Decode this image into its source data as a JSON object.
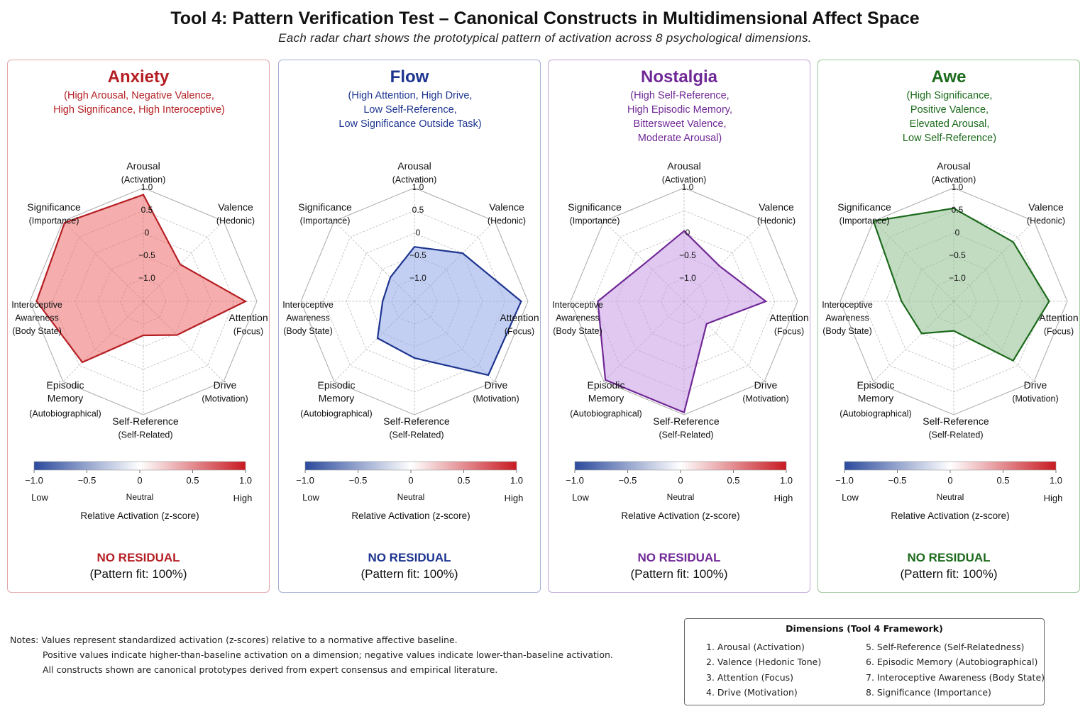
{
  "title": "Tool 4: Pattern Verification Test – Canonical Constructs in Multidimensional Affect Space",
  "subtitle": "Each radar chart shows the prototypical pattern of activation across 8 psychological dimensions.",
  "axes": [
    {
      "name": "Arousal",
      "sub": "(Activation)"
    },
    {
      "name": "Valence",
      "sub": "(Hedonic)"
    },
    {
      "name": "Attention",
      "sub": "(Focus)"
    },
    {
      "name": "Drive",
      "sub": "(Motivation)"
    },
    {
      "name": "Self-Reference",
      "sub": "(Self-Related)"
    },
    {
      "name": "Episodic Memory",
      "sub": "(Autobiographical)"
    },
    {
      "name": "Interoceptive Awareness",
      "sub": "(Body State)"
    },
    {
      "name": "Significance",
      "sub": "(Importance)"
    }
  ],
  "colorbar": {
    "ticks": [
      "−1.0",
      "−0.5",
      "0",
      "0.5",
      "1.0"
    ],
    "low": "Low",
    "neutral": "Neutral",
    "high": "High",
    "label": "Relative Activation (z-score)",
    "colors": [
      "#2b4a9c",
      "#ffffff",
      "#c81a22"
    ]
  },
  "chart_data": [
    {
      "type": "radar",
      "title": "Anxiety",
      "description": [
        "(High Arousal, Negative Valence,",
        "High Significance, High Interoceptive)"
      ],
      "color": "#b51f24",
      "fill": "#ef6a6a",
      "border": "#e3a6a8",
      "rlim": [
        -1.5,
        1.0
      ],
      "rings": [
        "1.0",
        "0.5",
        "0",
        "−0.5",
        "−1.0"
      ],
      "values": [
        0.85,
        -0.35,
        0.75,
        -0.45,
        -0.75,
        0.4,
        0.85,
        0.95
      ],
      "residual": "NO RESIDUAL",
      "fit": "(Pattern fit: 100%)"
    },
    {
      "type": "radar",
      "title": "Flow",
      "description": [
        "(High Attention, High Drive,",
        "Low Self-Reference,",
        "Low Significance Outside Task)"
      ],
      "color": "#1e3590",
      "fill": "#8fa6e8",
      "border": "#a6acd0",
      "rlim": [
        -1.5,
        1.0
      ],
      "rings": [
        "1.0",
        "0.5",
        "0",
        "−0.5",
        "−1.0"
      ],
      "values": [
        -0.3,
        0.0,
        0.85,
        0.8,
        -0.25,
        -0.35,
        -0.8,
        -0.75
      ],
      "residual": "NO RESIDUAL",
      "fit": "(Pattern fit: 100%)"
    },
    {
      "type": "radar",
      "title": "Nostalgia",
      "description": [
        "(High Self-Reference,",
        "High Episodic Memory,",
        "Bittersweet Valence,",
        "Moderate Arousal)"
      ],
      "color": "#702896",
      "fill": "#c79ae6",
      "border": "#c3a6d6",
      "rlim": [
        -1.5,
        1.0
      ],
      "rings": [
        "1.0",
        "0",
        "−0.5",
        "−1.0"
      ],
      "values": [
        0.05,
        -0.4,
        0.3,
        -0.8,
        0.95,
        0.95,
        0.4,
        -0.3
      ],
      "residual": "NO RESIDUAL",
      "fit": "(Pattern fit: 100%)"
    },
    {
      "type": "radar",
      "title": "Awe",
      "description": [
        "(High Significance,",
        "Positive Valence,",
        "Elevated Arousal,",
        "Low Self-Reference)"
      ],
      "color": "#1c6a1c",
      "fill": "#8fc08f",
      "border": "#9cc69c",
      "rlim": [
        -1.5,
        1.0
      ],
      "rings": [
        "1.0",
        "0.5",
        "0",
        "−0.5",
        "−1.0"
      ],
      "values": [
        0.55,
        0.35,
        0.6,
        0.35,
        -0.85,
        -0.5,
        -0.35,
        1.0
      ],
      "residual": "NO RESIDUAL",
      "fit": "(Pattern fit: 100%)"
    }
  ],
  "notes": [
    "Notes: Values represent standardized activation (z-scores) relative to a normative affective baseline.",
    "Positive values indicate higher-than-baseline activation on a dimension; negative values indicate lower-than-baseline activation.",
    "All constructs shown are canonical prototypes derived from expert consensus and empirical literature."
  ],
  "dimensions_box": {
    "title": "Dimensions (Tool 4 Framework)",
    "items": [
      "1. Arousal (Activation)",
      "2. Valence (Hedonic Tone)",
      "3. Attention (Focus)",
      "4. Drive (Motivation)",
      "5. Self-Reference (Self-Relatedness)",
      "6. Episodic Memory (Autobiographical)",
      "7. Interoceptive Awareness (Body State)",
      "8. Significance (Importance)"
    ]
  }
}
